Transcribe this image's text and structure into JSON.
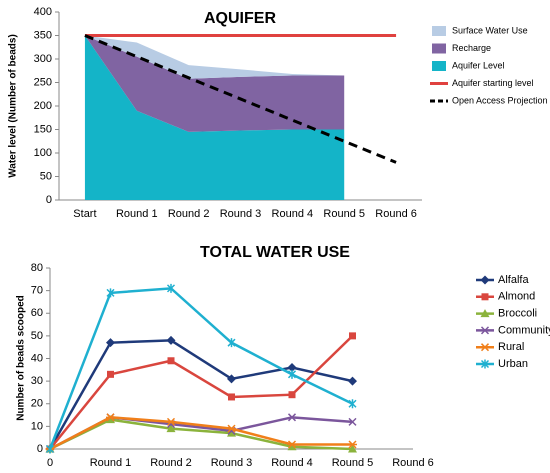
{
  "chart_data": [
    {
      "type": "area",
      "title": "AQUIFER",
      "ylabel": "Water level (Number of beads)",
      "categories": [
        "Start",
        "Round 1",
        "Round 2",
        "Round 3",
        "Round 4",
        "Round 5",
        "Round 6"
      ],
      "ylim": [
        0,
        400
      ],
      "yticks": [
        0,
        50,
        100,
        150,
        200,
        250,
        300,
        350,
        400
      ],
      "grid": false,
      "stacked": true,
      "series": [
        {
          "name": "Surface Water Use",
          "kind": "area",
          "color": "#b8cce4",
          "values": [
            0,
            30,
            29,
            16,
            3,
            0,
            null
          ]
        },
        {
          "name": "Recharge",
          "kind": "area",
          "color": "#8064a2",
          "values": [
            0,
            115,
            113,
            114,
            115,
            115,
            null
          ]
        },
        {
          "name": "Aquifer Level",
          "kind": "area",
          "color": "#14b4c8",
          "values": [
            350,
            190,
            145,
            148,
            150,
            150,
            null
          ]
        },
        {
          "name": "Aquifer starting level",
          "kind": "line",
          "color": "#e0413f",
          "values": [
            350,
            350,
            350,
            350,
            350,
            350,
            350
          ]
        },
        {
          "name": "Open Access Projection",
          "kind": "line",
          "dashed": true,
          "color": "#000000",
          "values": [
            350,
            305,
            260,
            215,
            170,
            125,
            80
          ]
        }
      ]
    },
    {
      "type": "line",
      "title": "TOTAL WATER USE",
      "ylabel": "Number of beads scooped",
      "categories": [
        "0",
        "Round 1",
        "Round 2",
        "Round 3",
        "Round 4",
        "Round 5",
        "Round 6"
      ],
      "ylim": [
        0,
        80
      ],
      "yticks": [
        0,
        10,
        20,
        30,
        40,
        50,
        60,
        70,
        80
      ],
      "grid": false,
      "series": [
        {
          "name": "Alfalfa",
          "color": "#1f3a7a",
          "marker": "diamond",
          "values": [
            0,
            47,
            48,
            31,
            36,
            30,
            null
          ]
        },
        {
          "name": "Almond",
          "color": "#d9463e",
          "marker": "square",
          "values": [
            0,
            33,
            39,
            23,
            24,
            50,
            null
          ]
        },
        {
          "name": "Broccoli",
          "color": "#8bb33c",
          "marker": "triangle",
          "values": [
            0,
            13,
            9,
            7,
            1,
            0,
            null
          ]
        },
        {
          "name": "Community",
          "color": "#7b569c",
          "marker": "x",
          "values": [
            0,
            14,
            11,
            8,
            14,
            12,
            null
          ]
        },
        {
          "name": "Rural",
          "color": "#f07f1a",
          "marker": "star",
          "values": [
            0,
            14,
            12,
            9,
            2,
            2,
            null
          ]
        },
        {
          "name": "Urban",
          "color": "#1fb0d0",
          "marker": "asterisk",
          "values": [
            0,
            69,
            71,
            47,
            33,
            20,
            null
          ]
        }
      ]
    }
  ]
}
